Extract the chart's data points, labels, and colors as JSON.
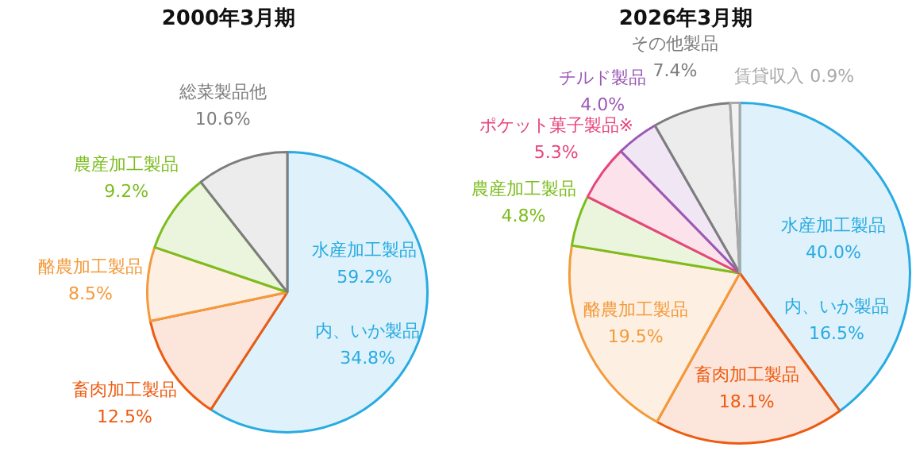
{
  "chart_data": [
    {
      "type": "pie",
      "title": "2000年3月期",
      "categories": [
        "水産加工製品",
        "畜肉加工製品",
        "酪農加工製品",
        "農産加工製品",
        "総菜製品他"
      ],
      "values": [
        59.2,
        12.5,
        8.5,
        9.2,
        10.6
      ],
      "value_labels": [
        "59.2%",
        "12.5%",
        "8.5%",
        "9.2%",
        "10.6%"
      ],
      "colors": [
        "#29abe2",
        "#ee5a10",
        "#f39a3c",
        "#7cbd1e",
        "#7d7d7d"
      ],
      "annotations": [
        "内、いか製品",
        "34.8%"
      ]
    },
    {
      "type": "pie",
      "title": "2026年3月期",
      "categories": [
        "水産加工製品",
        "畜肉加工製品",
        "酪農加工製品",
        "農産加工製品",
        "ポケット菓子製品※",
        "チルド製品",
        "その他製品",
        "賃貸収入"
      ],
      "values": [
        40.0,
        18.1,
        19.5,
        4.8,
        5.3,
        4.0,
        7.4,
        0.9
      ],
      "value_labels": [
        "40.0%",
        "18.1%",
        "19.5%",
        "4.8%",
        "5.3%",
        "4.0%",
        "7.4%",
        "0.9%"
      ],
      "colors": [
        "#29abe2",
        "#ee5a10",
        "#f39a3c",
        "#7cbd1e",
        "#e8457c",
        "#9b59b6",
        "#7d7d7d",
        "#a8a8a8"
      ],
      "annotations": [
        "内、いか製品",
        "16.5%"
      ]
    }
  ]
}
